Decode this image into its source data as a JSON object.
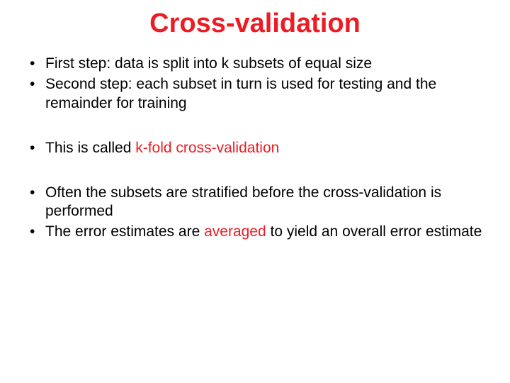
{
  "title": "Cross-validation",
  "colors": {
    "accent": "#ed1c24",
    "text": "#000000",
    "background": "#ffffff"
  },
  "typography": {
    "title_fontsize": 38,
    "body_fontsize": 21,
    "font_family": "Arial"
  },
  "bullets": {
    "b1_lead": "First step:",
    "b1_rest": " data is split into k subsets of equal size",
    "b2_lead": "Second step:",
    "b2_rest": " each subset in turn is used for testing and the remainder for training",
    "b3_pre": "This is called ",
    "b3_hl": "k-fold cross-validation",
    "b4": "Often the subsets are stratified before the cross-validation is performed",
    "b5_pre": "The error estimates are ",
    "b5_hl": "averaged",
    "b5_post": " to yield an overall error estimate"
  }
}
